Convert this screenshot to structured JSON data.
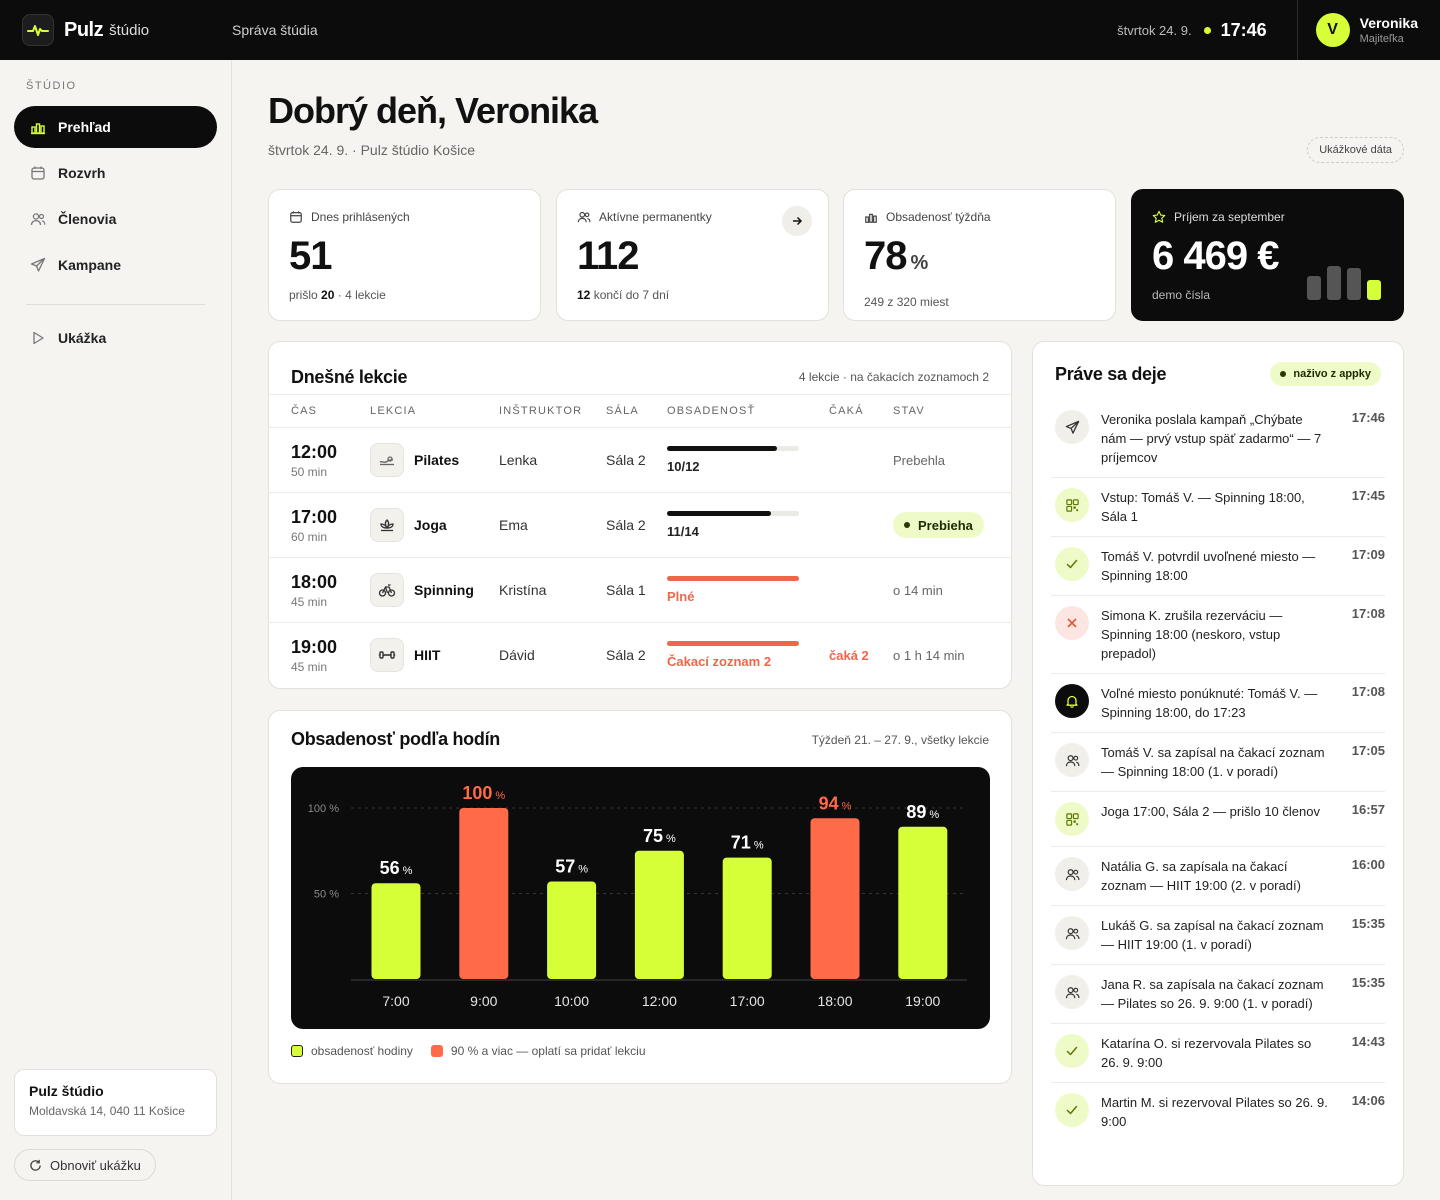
{
  "brand": {
    "name": "Pulz",
    "sub": "štúdio"
  },
  "topbar": {
    "nav": "Správa štúdia",
    "date": "štvrtok 24. 9.",
    "time": "17:46",
    "user_initial": "V",
    "user_name": "Veronika",
    "user_role": "Majiteľka"
  },
  "sidebar": {
    "heading": "ŠTÚDIO",
    "items": [
      {
        "label": "Prehľad",
        "icon": "bar-chart-icon"
      },
      {
        "label": "Rozvrh",
        "icon": "calendar-icon"
      },
      {
        "label": "Členovia",
        "icon": "users-icon"
      },
      {
        "label": "Kampane",
        "icon": "send-icon"
      }
    ],
    "demo_item": "Ukážka",
    "studio_name": "Pulz štúdio",
    "studio_address": "Moldavská 14, 040 11 Košice",
    "reset_label": "Obnoviť ukážku"
  },
  "header": {
    "greeting": "Dobrý deň, Veronika",
    "subtitle": "štvrtok 24. 9. · Pulz štúdio Košice",
    "demo_badge": "Ukážkové dáta"
  },
  "kpis": {
    "checked_in": {
      "label": "Dnes prihlásených",
      "value": "51",
      "sub_pre": "prišlo",
      "sub_bold": "20",
      "sub_post": "· 4 lekcie"
    },
    "passes": {
      "label": "Aktívne permanentky",
      "value": "112",
      "sub_bold": "12",
      "sub_post": "končí do 7 dní"
    },
    "occupancy": {
      "label": "Obsadenosť týždňa",
      "value": "78",
      "unit": "%",
      "sub": "249 z 320 miest"
    },
    "revenue": {
      "label": "Príjem za september",
      "value": "6 469 €",
      "sub": "demo čísla"
    }
  },
  "lessons": {
    "title": "Dnešné lekcie",
    "meta": "4 lekcie · na čakacích zoznamoch 2",
    "columns": [
      "ČAS",
      "LEKCIA",
      "INŠTRUKTOR",
      "SÁLA",
      "OBSADENOSŤ",
      "ČAKÁ",
      "STAV"
    ],
    "rows": [
      {
        "time": "12:00",
        "duration": "50 min",
        "lesson": "Pilates",
        "icon": "pilates-icon",
        "instructor": "Lenka",
        "room": "Sála 2",
        "fill": 0.83,
        "occupancy": "10/12",
        "full": false,
        "waiting": "",
        "state": "Prebehla",
        "live": false
      },
      {
        "time": "17:00",
        "duration": "60 min",
        "lesson": "Joga",
        "icon": "lotus-icon",
        "instructor": "Ema",
        "room": "Sála 2",
        "fill": 0.79,
        "occupancy": "11/14",
        "full": false,
        "waiting": "",
        "state": "Prebieha",
        "live": true
      },
      {
        "time": "18:00",
        "duration": "45 min",
        "lesson": "Spinning",
        "icon": "bike-icon",
        "instructor": "Kristína",
        "room": "Sála 1",
        "fill": 1,
        "occupancy": "Plné",
        "full": true,
        "waiting": "",
        "state": "o 14 min",
        "live": false
      },
      {
        "time": "19:00",
        "duration": "45 min",
        "lesson": "HIIT",
        "icon": "dumbbell-icon",
        "instructor": "Dávid",
        "room": "Sála 2",
        "fill": 1,
        "occupancy": "Čakací zoznam 2",
        "full": true,
        "waiting": "čaká 2",
        "state": "o 1 h 14 min",
        "live": false
      }
    ]
  },
  "hours": {
    "title": "Obsadenosť podľa hodín",
    "meta": "Týždeň 21. – 27. 9., všetky lekcie",
    "legend_normal": "obsadenosť hodiny",
    "legend_high": "90 % a viac — oplatí sa pridať lekciu"
  },
  "chart_data": {
    "type": "bar",
    "categories": [
      "7:00",
      "9:00",
      "10:00",
      "12:00",
      "17:00",
      "18:00",
      "19:00"
    ],
    "values": [
      56,
      100,
      57,
      75,
      71,
      94,
      89
    ],
    "unit": "%",
    "ylim": [
      0,
      100
    ],
    "y_ticks": [
      "100 %",
      "50 %"
    ],
    "threshold": 90,
    "colors": {
      "normal": "#d6ff38",
      "high": "#ff6a48"
    },
    "grid": true
  },
  "feed": {
    "title": "Práve sa deje",
    "live_label": "naživo z appky",
    "items": [
      {
        "text": "Veronika poslala kampaň „Chýbate nám — prvý vstup späť zadarmo“ — 7 príjemcov",
        "time": "17:46",
        "icon": "send-icon",
        "tone": "neutral"
      },
      {
        "text": "Vstup: Tomáš V. — Spinning 18:00, Sála 1",
        "time": "17:45",
        "icon": "qr-icon",
        "tone": "lime"
      },
      {
        "text": "Tomáš V. potvrdil uvoľnené miesto — Spinning 18:00",
        "time": "17:09",
        "icon": "check-icon",
        "tone": "lime"
      },
      {
        "text": "Simona K. zrušila rezerváciu — Spinning 18:00 (neskoro, vstup prepadol)",
        "time": "17:08",
        "icon": "x-icon",
        "tone": "red"
      },
      {
        "text": "Voľné miesto ponúknuté: Tomáš V. — Spinning 18:00, do 17:23",
        "time": "17:08",
        "icon": "bell-icon",
        "tone": "black"
      },
      {
        "text": "Tomáš V. sa zapísal na čakací zoznam — Spinning 18:00 (1. v poradí)",
        "time": "17:05",
        "icon": "users-icon",
        "tone": "neutral"
      },
      {
        "text": "Joga 17:00, Sála 2 — prišlo 10 členov",
        "time": "16:57",
        "icon": "qr-icon",
        "tone": "lime"
      },
      {
        "text": "Natália G. sa zapísala na čakací zoznam — HIIT 19:00 (2. v poradí)",
        "time": "16:00",
        "icon": "users-icon",
        "tone": "neutral"
      },
      {
        "text": "Lukáš G. sa zapísal na čakací zoznam — HIIT 19:00 (1. v poradí)",
        "time": "15:35",
        "icon": "users-icon",
        "tone": "neutral"
      },
      {
        "text": "Jana R. sa zapísala na čakací zoznam — Pilates so 26. 9. 9:00 (1. v poradí)",
        "time": "15:35",
        "icon": "users-icon",
        "tone": "neutral"
      },
      {
        "text": "Katarína O. si rezervovala Pilates so 26. 9. 9:00",
        "time": "14:43",
        "icon": "check-icon",
        "tone": "lime"
      },
      {
        "text": "Martin M. si rezervoval Pilates so 26. 9. 9:00",
        "time": "14:06",
        "icon": "check-icon",
        "tone": "lime"
      }
    ]
  }
}
